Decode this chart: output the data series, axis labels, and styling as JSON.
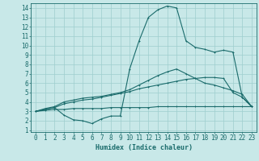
{
  "xlabel": "Humidex (Indice chaleur)",
  "background_color": "#c8e8e8",
  "grid_color": "#9ecece",
  "line_color": "#1a6b6b",
  "x_ticks": [
    0,
    1,
    2,
    3,
    4,
    5,
    6,
    7,
    8,
    9,
    10,
    11,
    12,
    13,
    14,
    15,
    16,
    17,
    18,
    19,
    20,
    21,
    22,
    23
  ],
  "y_ticks": [
    1,
    2,
    3,
    4,
    5,
    6,
    7,
    8,
    9,
    10,
    11,
    12,
    13,
    14
  ],
  "ylim": [
    0.8,
    14.5
  ],
  "xlim": [
    -0.5,
    23.5
  ],
  "line1_y": [
    3.0,
    3.1,
    3.2,
    3.2,
    3.3,
    3.3,
    3.3,
    3.3,
    3.4,
    3.4,
    3.4,
    3.4,
    3.4,
    3.5,
    3.5,
    3.5,
    3.5,
    3.5,
    3.5,
    3.5,
    3.5,
    3.5,
    3.5,
    3.5
  ],
  "line2_y": [
    3.0,
    3.2,
    3.4,
    3.8,
    4.0,
    4.2,
    4.3,
    4.5,
    4.7,
    4.9,
    5.1,
    5.4,
    5.6,
    5.8,
    6.0,
    6.2,
    6.4,
    6.5,
    6.6,
    6.6,
    6.5,
    5.0,
    4.5,
    3.5
  ],
  "line3_y": [
    3.0,
    3.3,
    3.5,
    4.0,
    4.2,
    4.4,
    4.5,
    4.6,
    4.8,
    5.0,
    5.3,
    5.8,
    6.3,
    6.8,
    7.2,
    7.5,
    7.0,
    6.5,
    6.0,
    5.8,
    5.5,
    5.2,
    4.8,
    3.5
  ],
  "line4_y": [
    3.0,
    3.2,
    3.4,
    2.6,
    2.1,
    2.0,
    1.7,
    2.2,
    2.5,
    2.5,
    7.5,
    10.5,
    13.0,
    13.8,
    14.2,
    14.0,
    10.5,
    9.8,
    9.6,
    9.3,
    9.5,
    9.3,
    4.5,
    3.5
  ],
  "markersize": 2.0,
  "linewidth": 0.8,
  "fontsize_label": 6,
  "fontsize_tick": 5.5
}
